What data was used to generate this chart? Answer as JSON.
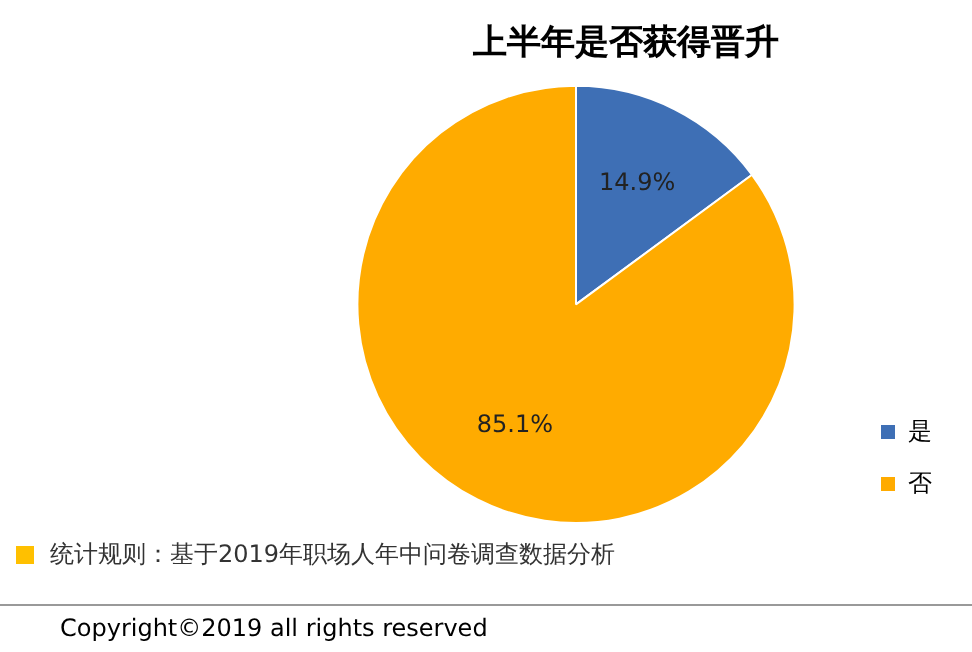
{
  "chart_data": {
    "type": "pie",
    "title": "上半年是否获得晋升",
    "categories": [
      "是",
      "否"
    ],
    "values": [
      14.9,
      85.1
    ],
    "value_labels": [
      "14.9%",
      "85.1%"
    ],
    "colors": [
      "#3e6fb5",
      "#ffab00"
    ],
    "legend": "right",
    "annotations": [
      "统计规则：基于2019年职场人年中问卷调查数据分析",
      "Copyright©2019 all rights reserved"
    ]
  }
}
